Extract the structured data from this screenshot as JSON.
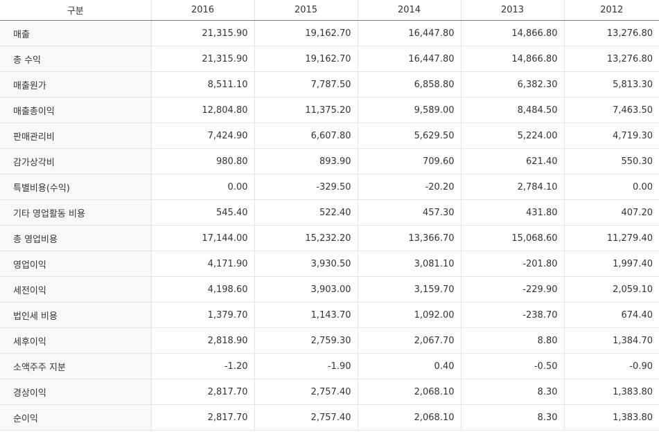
{
  "table": {
    "header": [
      "구분",
      "2016",
      "2015",
      "2014",
      "2013",
      "2012"
    ],
    "rows": [
      {
        "label": "매출",
        "values": [
          "21,315.90",
          "19,162.70",
          "16,447.80",
          "14,866.80",
          "13,276.80"
        ]
      },
      {
        "label": "총 수익",
        "values": [
          "21,315.90",
          "19,162.70",
          "16,447.80",
          "14,866.80",
          "13,276.80"
        ]
      },
      {
        "label": "매출원가",
        "values": [
          "8,511.10",
          "7,787.50",
          "6,858.80",
          "6,382.30",
          "5,813.30"
        ]
      },
      {
        "label": "매출총이익",
        "values": [
          "12,804.80",
          "11,375.20",
          "9,589.00",
          "8,484.50",
          "7,463.50"
        ]
      },
      {
        "label": "판매관리비",
        "values": [
          "7,424.90",
          "6,607.80",
          "5,629.50",
          "5,224.00",
          "4,719.30"
        ]
      },
      {
        "label": "감가상각비",
        "values": [
          "980.80",
          "893.90",
          "709.60",
          "621.40",
          "550.30"
        ]
      },
      {
        "label": "특별비용(수익)",
        "values": [
          "0.00",
          "-329.50",
          "-20.20",
          "2,784.10",
          "0.00"
        ]
      },
      {
        "label": "기타 영업활동 비용",
        "values": [
          "545.40",
          "522.40",
          "457.30",
          "431.80",
          "407.20"
        ]
      },
      {
        "label": "총 영업비용",
        "values": [
          "17,144.00",
          "15,232.20",
          "13,366.70",
          "15,068.60",
          "11,279.40"
        ]
      },
      {
        "label": "영업이익",
        "values": [
          "4,171.90",
          "3,930.50",
          "3,081.10",
          "-201.80",
          "1,997.40"
        ]
      },
      {
        "label": "세전이익",
        "values": [
          "4,198.60",
          "3,903.00",
          "3,159.70",
          "-229.90",
          "2,059.10"
        ]
      },
      {
        "label": "법인세 비용",
        "values": [
          "1,379.70",
          "1,143.70",
          "1,092.00",
          "-238.70",
          "674.40"
        ]
      },
      {
        "label": "세후이익",
        "values": [
          "2,818.90",
          "2,759.30",
          "2,067.70",
          "8.80",
          "1,384.70"
        ]
      },
      {
        "label": "소액주주 지분",
        "values": [
          "-1.20",
          "-1.90",
          "0.40",
          "-0.50",
          "-0.90"
        ]
      },
      {
        "label": "경상이익",
        "values": [
          "2,817.70",
          "2,757.40",
          "2,068.10",
          "8.30",
          "1,383.80"
        ]
      },
      {
        "label": "순이익",
        "values": [
          "2,817.70",
          "2,757.40",
          "2,068.10",
          "8.30",
          "1,383.80"
        ]
      }
    ]
  }
}
